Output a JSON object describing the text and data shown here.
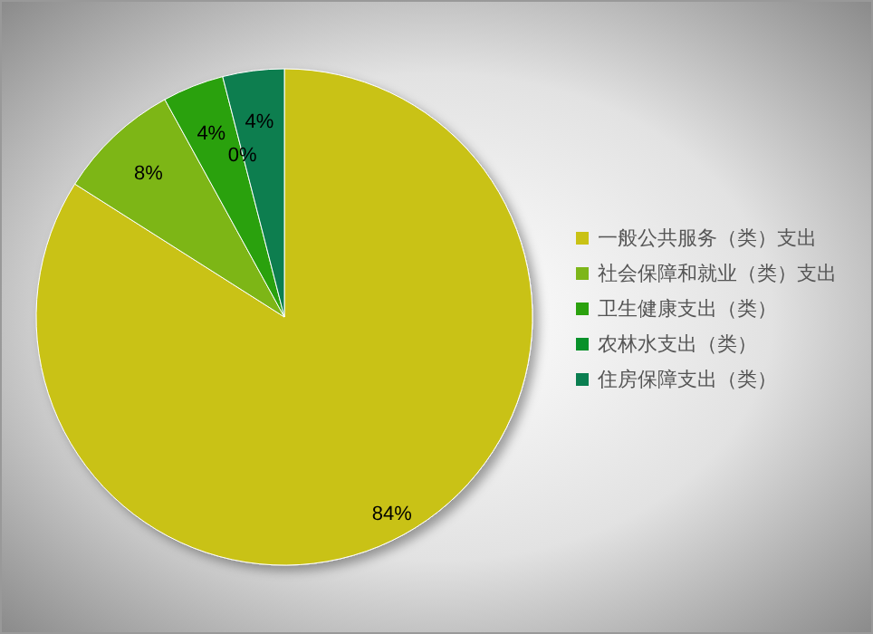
{
  "chart_data": {
    "type": "pie",
    "categories": [
      "一般公共服务（类）支出",
      "社会保障和就业（类）支出",
      "卫生健康支出（类）",
      "农林水支出（类）",
      "住房保障支出（类）"
    ],
    "values": [
      84,
      8,
      4,
      0,
      4
    ],
    "colors": [
      "#c9c215",
      "#7db619",
      "#2ba10e",
      "#08912a",
      "#0a7e50"
    ],
    "value_labels": [
      "84%",
      "8%",
      "4%",
      "0%",
      "4%"
    ],
    "legend": "right"
  }
}
